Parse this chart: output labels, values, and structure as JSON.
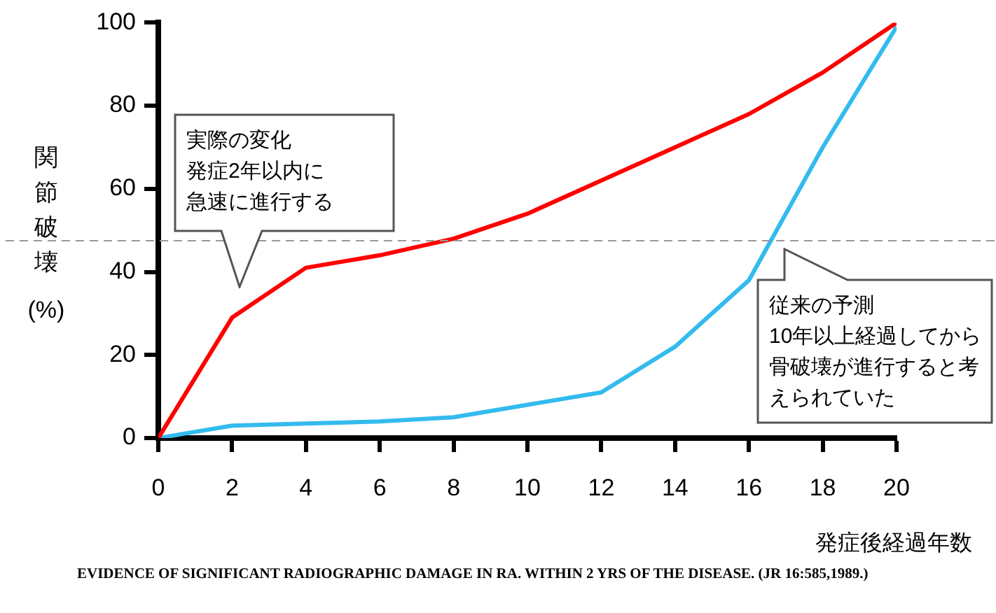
{
  "chart_data": {
    "type": "line",
    "ylabel": "関節破壊\n(%)",
    "xlabel": "発症後経過年数",
    "x": [
      0,
      2,
      4,
      6,
      8,
      10,
      12,
      14,
      16,
      18,
      20
    ],
    "series": [
      {
        "color": "#ff0000",
        "values": [
          0,
          29,
          41,
          44,
          48,
          54,
          62,
          70,
          78,
          88,
          100
        ]
      },
      {
        "color": "#33bbee",
        "values": [
          0,
          3,
          3.5,
          4,
          5,
          8,
          11,
          22,
          38,
          70,
          99
        ]
      }
    ],
    "xlim": [
      0,
      20
    ],
    "xticks": [
      0,
      2,
      4,
      6,
      8,
      10,
      12,
      14,
      16,
      18,
      20
    ],
    "ylim": [
      0,
      100
    ],
    "yticks": [
      0,
      20,
      40,
      60,
      80,
      100
    ],
    "grid": false,
    "legend": false,
    "marker": "none",
    "line_style": "solid",
    "ref_lines": [
      {
        "axis": "y",
        "value": 47.5,
        "color": "#999999",
        "line_style": "dashed"
      }
    ],
    "annotations": [
      "実際の変化",
      "発症2年以内に",
      "急速に進行する",
      "従来の予測",
      "10年以上経過してから",
      "骨破壊が進行すると考",
      "えられていた",
      "EVIDENCE OF SIGNIFICANT RADIOGRAPHIC DAMAGE IN RA. WITHIN 2 YRS OF THE DISEASE. (JR 16:585,1989.)"
    ]
  }
}
